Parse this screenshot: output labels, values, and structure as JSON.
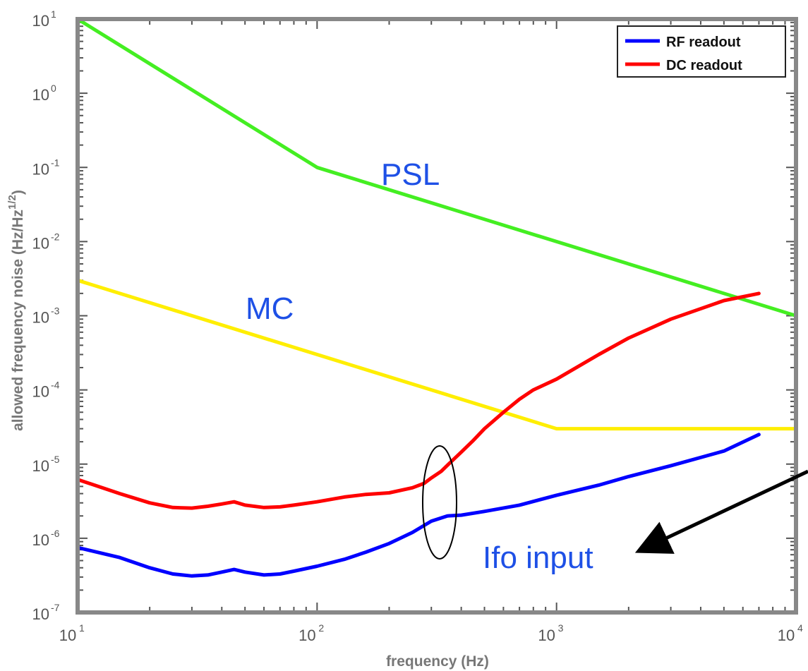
{
  "chart_data": {
    "type": "line",
    "xscale": "log",
    "yscale": "log",
    "xlim": [
      10,
      10000
    ],
    "ylim": [
      1e-07,
      10
    ],
    "xlabel": "frequency (Hz)",
    "ylabel": {
      "main": "allowed frequency noise (Hz/Hz",
      "exp": "1/2",
      "end": ")"
    },
    "xticks": [
      {
        "value": 10,
        "base": "10",
        "exp": "1"
      },
      {
        "value": 100,
        "base": "10",
        "exp": "2"
      },
      {
        "value": 1000,
        "base": "10",
        "exp": "3"
      },
      {
        "value": 10000,
        "base": "10",
        "exp": "4"
      }
    ],
    "yticks": [
      {
        "value": 10,
        "base": "10",
        "exp": "1"
      },
      {
        "value": 1,
        "base": "10",
        "exp": "0"
      },
      {
        "value": 0.1,
        "base": "10",
        "exp": "-1"
      },
      {
        "value": 0.01,
        "base": "10",
        "exp": "-2"
      },
      {
        "value": 0.001,
        "base": "10",
        "exp": "-3"
      },
      {
        "value": 0.0001,
        "base": "10",
        "exp": "-4"
      },
      {
        "value": 1e-05,
        "base": "10",
        "exp": "-5"
      },
      {
        "value": 1e-06,
        "base": "10",
        "exp": "-6"
      },
      {
        "value": 1e-07,
        "base": "10",
        "exp": "-7"
      }
    ],
    "legend_position": "top-right",
    "series": [
      {
        "name": "RF readout",
        "color": "#0000ff",
        "in_legend": true,
        "x": [
          10,
          15,
          20,
          25,
          30,
          35,
          40,
          45,
          50,
          60,
          70,
          80,
          100,
          130,
          160,
          200,
          250,
          300,
          350,
          400,
          500,
          700,
          1000,
          1500,
          2000,
          3000,
          5000,
          7000
        ],
        "y": [
          7.5e-07,
          5.5e-07,
          4e-07,
          3.3e-07,
          3.1e-07,
          3.2e-07,
          3.5e-07,
          3.8e-07,
          3.5e-07,
          3.2e-07,
          3.3e-07,
          3.6e-07,
          4.2e-07,
          5.2e-07,
          6.5e-07,
          8.5e-07,
          1.2e-06,
          1.7e-06,
          2e-06,
          2.05e-06,
          2.3e-06,
          2.8e-06,
          3.8e-06,
          5.2e-06,
          6.8e-06,
          9.5e-06,
          1.5e-05,
          2.5e-05
        ]
      },
      {
        "name": "DC readout",
        "color": "#ff0000",
        "in_legend": true,
        "x": [
          10,
          15,
          20,
          25,
          30,
          35,
          40,
          45,
          50,
          60,
          70,
          80,
          100,
          130,
          160,
          200,
          250,
          280,
          300,
          330,
          360,
          400,
          450,
          500,
          600,
          700,
          800,
          1000,
          1500,
          2000,
          3000,
          5000,
          7000
        ],
        "y": [
          6.2e-06,
          4e-06,
          3e-06,
          2.6e-06,
          2.55e-06,
          2.7e-06,
          2.9e-06,
          3.1e-06,
          2.8e-06,
          2.6e-06,
          2.65e-06,
          2.8e-06,
          3.1e-06,
          3.6e-06,
          3.9e-06,
          4.1e-06,
          4.8e-06,
          5.5e-06,
          6.5e-06,
          8e-06,
          1.05e-05,
          1.45e-05,
          2.1e-05,
          3e-05,
          5e-05,
          7.5e-05,
          0.0001,
          0.00014,
          0.0003,
          0.0005,
          0.0009,
          0.0016,
          0.002
        ]
      },
      {
        "name": "PSL",
        "color": "#44ee22",
        "in_legend": false,
        "x": [
          10,
          100,
          10000
        ],
        "y": [
          10,
          0.1,
          0.001
        ]
      },
      {
        "name": "MC",
        "color": "#ffee00",
        "in_legend": false,
        "x": [
          10,
          1000,
          10000
        ],
        "y": [
          0.003,
          3e-05,
          3e-05
        ]
      }
    ],
    "annotations": [
      {
        "text": "PSL",
        "color": "#1e50e6"
      },
      {
        "text": "MC",
        "color": "#1e50e6"
      },
      {
        "text": "Ifo input",
        "color": "#1e50e6"
      }
    ]
  }
}
